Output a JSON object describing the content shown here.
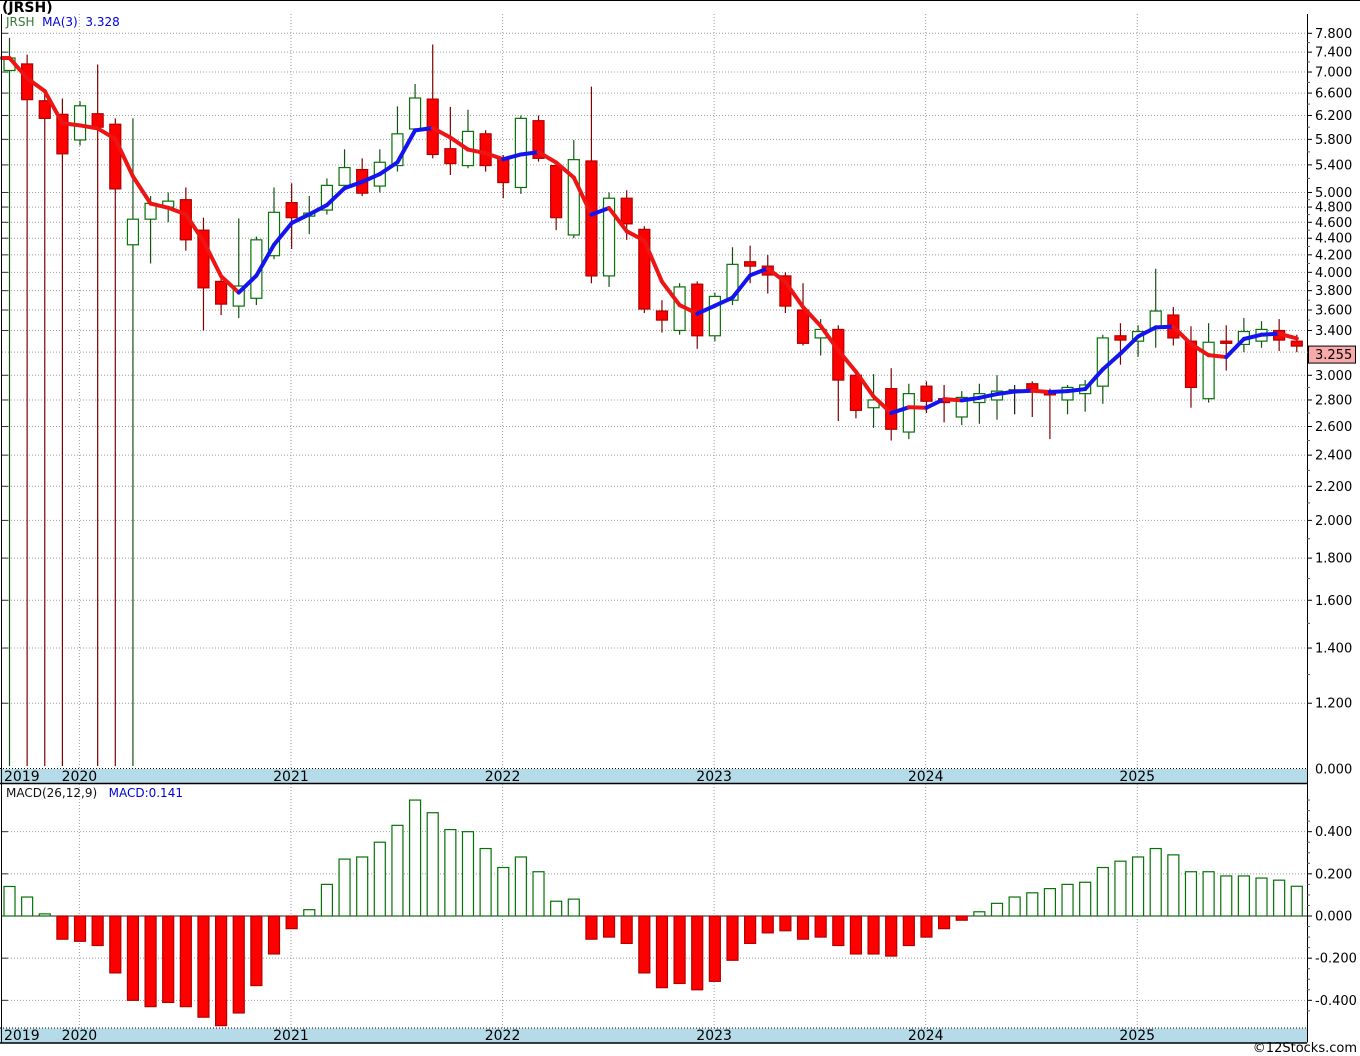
{
  "title": "(JRSH)",
  "watermark": "©12Stocks.com",
  "main_panel": {
    "legend": {
      "symbol": "JRSH",
      "ma_label": "MA(3)",
      "ma_value": "3.328"
    },
    "price_tag": "3.255",
    "y_axis": [
      [
        7.8,
        "7.800"
      ],
      [
        7.4,
        "7.400"
      ],
      [
        7.0,
        "7.000"
      ],
      [
        6.6,
        "6.600"
      ],
      [
        6.2,
        "6.200"
      ],
      [
        5.8,
        "5.800"
      ],
      [
        5.4,
        "5.400"
      ],
      [
        5.0,
        "5.000"
      ],
      [
        4.8,
        "4.800"
      ],
      [
        4.6,
        "4.600"
      ],
      [
        4.4,
        "4.400"
      ],
      [
        4.2,
        "4.200"
      ],
      [
        4.0,
        "4.000"
      ],
      [
        3.8,
        "3.800"
      ],
      [
        3.6,
        "3.600"
      ],
      [
        3.4,
        "3.400"
      ],
      [
        3.0,
        "3.000"
      ],
      [
        2.8,
        "2.800"
      ],
      [
        2.6,
        "2.600"
      ],
      [
        2.4,
        "2.400"
      ],
      [
        2.2,
        "2.200"
      ],
      [
        2.0,
        "2.000"
      ],
      [
        1.8,
        "1.800"
      ],
      [
        1.6,
        "1.600"
      ],
      [
        1.4,
        "1.400"
      ],
      [
        1.2,
        "1.200"
      ]
    ],
    "grid_only": [
      3.2
    ],
    "floor_label": "0.000",
    "years": [
      "2019",
      "2020",
      "2021",
      "2022",
      "2023",
      "2024",
      "2025"
    ]
  },
  "macd_panel": {
    "legend_params": "MACD(26,12,9)",
    "legend_value": "MACD:0.141",
    "y_axis": [
      [
        0.4,
        "0.400"
      ],
      [
        0.2,
        "0.200"
      ],
      [
        0.0,
        "0.000"
      ],
      [
        -0.2,
        "-0.200"
      ],
      [
        -0.4,
        "-0.400"
      ]
    ]
  },
  "colors": {
    "up_border": "#067306",
    "up_fill": "#ffffff",
    "up_wick": "#145214",
    "down_fill": "#fe0000",
    "down_border": "#b30000",
    "down_wick": "#7e0101",
    "doji": "#1a1a1a",
    "ma_up": "#1414ee",
    "ma_down": "#ee1414",
    "band": "#b5dbe9",
    "grid": "#9e9e9e",
    "axis": "#000000",
    "tag_bg": "#f8a9a9",
    "macd_zero": "#222222"
  },
  "chart_data": [
    {
      "type": "candlestick",
      "name": "JRSH monthly",
      "y_scale": "log",
      "y_top": 7.8,
      "floor_label": "0.000",
      "last_price": 3.255,
      "ma3_last": 3.328,
      "note_null_low": "low wick drawn to chart floor",
      "columns": [
        "month",
        "open",
        "high",
        "low",
        "close"
      ],
      "candles": [
        [
          "2019-09",
          7.03,
          7.7,
          null,
          7.28
        ],
        [
          "2019-10",
          7.16,
          7.35,
          null,
          6.48
        ],
        [
          "2019-11",
          6.46,
          6.6,
          null,
          6.15
        ],
        [
          "2019-12",
          6.22,
          6.5,
          null,
          5.57
        ],
        [
          "2020-01",
          5.79,
          6.45,
          5.7,
          6.37
        ],
        [
          "2020-02",
          6.23,
          7.15,
          null,
          6.0
        ],
        [
          "2020-03",
          6.05,
          6.15,
          null,
          5.05
        ],
        [
          "2020-04",
          4.32,
          6.15,
          null,
          4.64
        ],
        [
          "2020-05",
          4.64,
          4.95,
          4.1,
          4.85
        ],
        [
          "2020-06",
          4.8,
          5.0,
          4.6,
          4.88
        ],
        [
          "2020-07",
          4.9,
          5.07,
          4.25,
          4.38
        ],
        [
          "2020-08",
          4.5,
          4.66,
          3.4,
          3.83
        ],
        [
          "2020-09",
          3.9,
          3.95,
          3.55,
          3.66
        ],
        [
          "2020-10",
          3.64,
          4.65,
          3.52,
          3.85
        ],
        [
          "2020-11",
          3.72,
          4.42,
          3.65,
          4.38
        ],
        [
          "2020-12",
          4.19,
          5.07,
          4.15,
          4.73
        ],
        [
          "2021-01",
          4.86,
          5.13,
          4.27,
          4.66
        ],
        [
          "2021-02",
          4.68,
          4.95,
          4.45,
          4.72
        ],
        [
          "2021-03",
          4.76,
          5.2,
          4.7,
          5.1
        ],
        [
          "2021-04",
          5.1,
          5.64,
          5.05,
          5.36
        ],
        [
          "2021-05",
          5.33,
          5.5,
          4.95,
          4.99
        ],
        [
          "2021-06",
          5.09,
          5.64,
          5.0,
          5.44
        ],
        [
          "2021-07",
          5.39,
          6.36,
          5.3,
          5.89
        ],
        [
          "2021-08",
          5.97,
          6.77,
          5.9,
          6.51
        ],
        [
          "2021-09",
          6.49,
          7.56,
          5.5,
          5.56
        ],
        [
          "2021-10",
          5.65,
          6.35,
          5.25,
          5.42
        ],
        [
          "2021-11",
          5.39,
          6.3,
          5.35,
          5.93
        ],
        [
          "2021-12",
          5.89,
          5.95,
          5.3,
          5.39
        ],
        [
          "2022-01",
          5.48,
          5.55,
          4.92,
          5.14
        ],
        [
          "2022-02",
          5.07,
          6.2,
          4.98,
          6.15
        ],
        [
          "2022-03",
          6.11,
          6.2,
          5.45,
          5.5
        ],
        [
          "2022-04",
          5.39,
          5.45,
          4.5,
          4.66
        ],
        [
          "2022-05",
          4.44,
          5.79,
          4.4,
          5.48
        ],
        [
          "2022-06",
          5.46,
          6.72,
          3.88,
          3.96
        ],
        [
          "2022-07",
          3.96,
          5.0,
          3.84,
          4.92
        ],
        [
          "2022-08",
          4.92,
          5.03,
          4.38,
          4.58
        ],
        [
          "2022-09",
          4.51,
          4.55,
          3.57,
          3.61
        ],
        [
          "2022-10",
          3.59,
          3.7,
          3.38,
          3.5
        ],
        [
          "2022-11",
          3.4,
          3.88,
          3.36,
          3.84
        ],
        [
          "2022-12",
          3.87,
          3.9,
          3.23,
          3.35
        ],
        [
          "2023-01",
          3.35,
          3.78,
          3.3,
          3.74
        ],
        [
          "2023-02",
          3.7,
          4.29,
          3.65,
          4.09
        ],
        [
          "2023-03",
          4.12,
          4.31,
          3.88,
          4.07
        ],
        [
          "2023-04",
          4.07,
          4.2,
          3.77,
          3.97
        ],
        [
          "2023-05",
          3.96,
          4.0,
          3.57,
          3.64
        ],
        [
          "2023-06",
          3.6,
          3.88,
          3.26,
          3.28
        ],
        [
          "2023-07",
          3.33,
          3.51,
          3.17,
          3.41
        ],
        [
          "2023-08",
          3.41,
          3.45,
          2.64,
          2.96
        ],
        [
          "2023-09",
          3.0,
          3.03,
          2.66,
          2.72
        ],
        [
          "2023-10",
          2.74,
          3.01,
          2.59,
          2.8
        ],
        [
          "2023-11",
          2.89,
          3.06,
          2.5,
          2.58
        ],
        [
          "2023-12",
          2.56,
          2.93,
          2.51,
          2.85
        ],
        [
          "2024-01",
          2.91,
          2.95,
          2.7,
          2.79
        ],
        [
          "2024-02",
          2.81,
          2.92,
          2.63,
          2.78
        ],
        [
          "2024-03",
          2.67,
          2.87,
          2.61,
          2.82
        ],
        [
          "2024-04",
          2.78,
          2.93,
          2.62,
          2.85
        ],
        [
          "2024-05",
          2.8,
          3.0,
          2.65,
          2.87
        ],
        [
          "2024-06",
          2.88,
          2.92,
          2.69,
          2.88
        ],
        [
          "2024-07",
          2.93,
          2.95,
          2.67,
          2.87
        ],
        [
          "2024-08",
          2.86,
          2.89,
          2.51,
          2.84
        ],
        [
          "2024-09",
          2.8,
          2.92,
          2.69,
          2.9
        ],
        [
          "2024-10",
          2.85,
          2.96,
          2.71,
          2.92
        ],
        [
          "2024-11",
          2.91,
          3.36,
          2.77,
          3.33
        ],
        [
          "2024-12",
          3.35,
          3.47,
          3.09,
          3.31
        ],
        [
          "2025-01",
          3.3,
          3.45,
          3.16,
          3.39
        ],
        [
          "2025-02",
          3.42,
          4.04,
          3.24,
          3.59
        ],
        [
          "2025-03",
          3.55,
          3.63,
          3.26,
          3.33
        ],
        [
          "2025-04",
          3.3,
          3.44,
          2.74,
          2.9
        ],
        [
          "2025-05",
          2.81,
          3.47,
          2.78,
          3.29
        ],
        [
          "2025-06",
          3.3,
          3.45,
          3.04,
          3.28
        ],
        [
          "2025-07",
          3.27,
          3.52,
          3.2,
          3.39
        ],
        [
          "2025-08",
          3.3,
          3.49,
          3.24,
          3.41
        ],
        [
          "2025-09",
          3.4,
          3.51,
          3.21,
          3.31
        ],
        [
          "2025-10",
          3.3,
          3.36,
          3.2,
          3.255
        ]
      ]
    },
    {
      "type": "bar",
      "name": "MACD(26,12,9)",
      "last": 0.141,
      "values": [
        0.14,
        0.09,
        0.01,
        -0.11,
        -0.12,
        -0.14,
        -0.27,
        -0.4,
        -0.43,
        -0.41,
        -0.43,
        -0.48,
        -0.52,
        -0.46,
        -0.33,
        -0.18,
        -0.06,
        0.03,
        0.15,
        0.27,
        0.28,
        0.35,
        0.43,
        0.55,
        0.49,
        0.41,
        0.4,
        0.32,
        0.23,
        0.28,
        0.21,
        0.07,
        0.08,
        -0.11,
        -0.1,
        -0.13,
        -0.27,
        -0.34,
        -0.32,
        -0.35,
        -0.31,
        -0.21,
        -0.13,
        -0.08,
        -0.07,
        -0.11,
        -0.1,
        -0.14,
        -0.18,
        -0.18,
        -0.19,
        -0.14,
        -0.1,
        -0.06,
        -0.02,
        0.02,
        0.06,
        0.09,
        0.11,
        0.13,
        0.15,
        0.16,
        0.23,
        0.26,
        0.28,
        0.32,
        0.29,
        0.21,
        0.21,
        0.19,
        0.19,
        0.18,
        0.17,
        0.141
      ]
    }
  ]
}
